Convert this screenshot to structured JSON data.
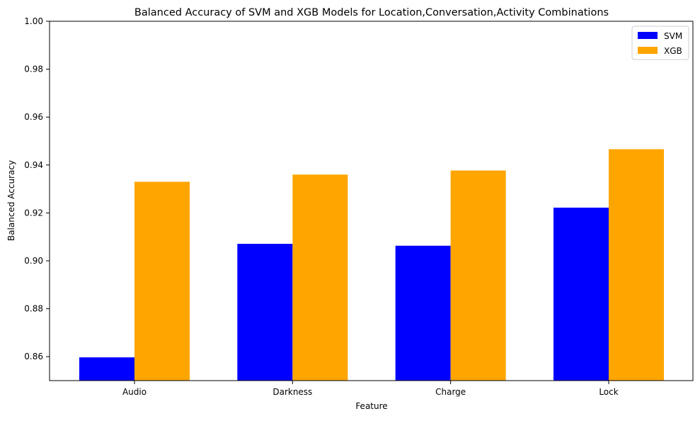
{
  "chart_data": {
    "type": "bar",
    "title": "Balanced Accuracy of SVM and XGB Models for Location,Conversation,Activity Combinations",
    "xlabel": "Feature",
    "ylabel": "Balanced Accuracy",
    "categories": [
      "Audio",
      "Darkness",
      "Charge",
      "Lock"
    ],
    "series": [
      {
        "name": "SVM",
        "color": "#0000ff",
        "values": [
          0.8597,
          0.9071,
          0.9063,
          0.9222
        ]
      },
      {
        "name": "XGB",
        "color": "#ffa500",
        "values": [
          0.933,
          0.936,
          0.9377,
          0.9466
        ]
      }
    ],
    "ylim": [
      0.85,
      1.0
    ],
    "yticks": [
      "0.86",
      "0.88",
      "0.90",
      "0.92",
      "0.94",
      "0.96",
      "0.98",
      "1.00"
    ],
    "grid": false,
    "legend_position": "top-right"
  }
}
